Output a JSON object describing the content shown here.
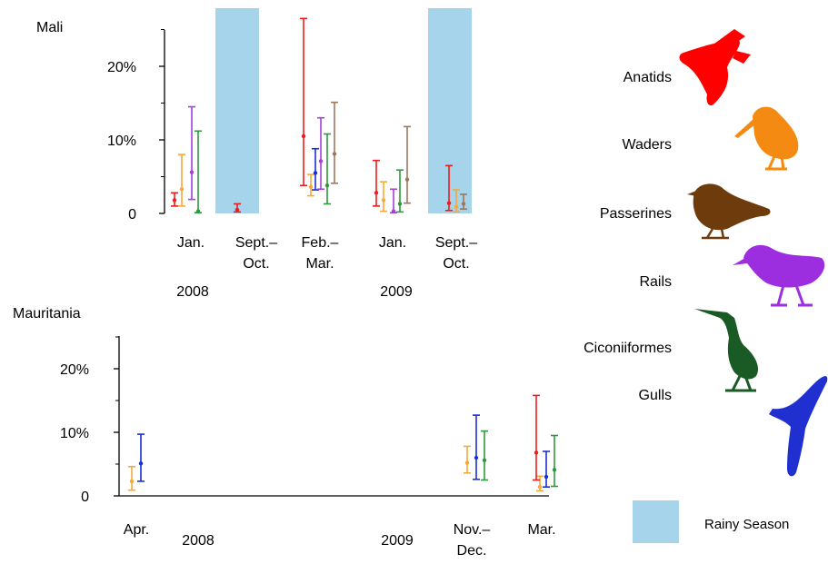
{
  "colors": {
    "anatids": "#ee1c1c",
    "waders": "#f7a83a",
    "passerines": "#a0765a",
    "rails": "#a43fd8",
    "ciconiiformes": "#2a9a3a",
    "gulls": "#1b2fd6",
    "rainy_season": "#a6d4ea",
    "axis": "#000000"
  },
  "legend": {
    "items": [
      {
        "key": "anatids",
        "label": "Anatids",
        "color": "#ee1c1c",
        "icon": "duck-silhouette-icon",
        "icon_color": "#ff0000"
      },
      {
        "key": "waders",
        "label": "Waders",
        "color": "#f7a83a",
        "icon": "curlew-silhouette-icon",
        "icon_color": "#f58a12"
      },
      {
        "key": "passerines",
        "label": "Passerines",
        "color": "#a0765a",
        "icon": "sparrow-silhouette-icon",
        "icon_color": "#6e3b0c"
      },
      {
        "key": "rails",
        "label": "Rails",
        "color": "#a43fd8",
        "icon": "rail-silhouette-icon",
        "icon_color": "#9d2ee0"
      },
      {
        "key": "ciconiiformes",
        "label": "Ciconiiformes",
        "color": "#2a9a3a",
        "icon": "heron-silhouette-icon",
        "icon_color": "#1a5a24"
      },
      {
        "key": "gulls",
        "label": "Gulls",
        "color": "#1b2fd6",
        "icon": "gull-silhouette-icon",
        "icon_color": "#1f2fd0"
      }
    ],
    "rainy_season_label": "Rainy Season"
  },
  "chart_data": [
    {
      "type": "scatter",
      "panel": "Mali",
      "title": "Mali",
      "ylim": [
        0,
        26
      ],
      "y_tick_labels": [
        "0",
        "10%",
        "20%"
      ],
      "y_tick_values": [
        0,
        10,
        20
      ],
      "periods": [
        {
          "label_lines": [
            "Jan."
          ],
          "x": 0
        },
        {
          "label_lines": [
            "Sept.–",
            "Oct."
          ],
          "x": 1
        },
        {
          "label_lines": [
            "Feb.–",
            "Mar."
          ],
          "x": 2
        },
        {
          "label_lines": [
            "Jan."
          ],
          "x": 3
        },
        {
          "label_lines": [
            "Sept.–",
            "Oct."
          ],
          "x": 4
        }
      ],
      "years": [
        {
          "label": "2008",
          "x": 0.5
        },
        {
          "label": "2009",
          "x": 3.1
        }
      ],
      "rainy_seasons": [
        1,
        4
      ],
      "series": [
        {
          "key": "anatids",
          "name": "Anatids",
          "points": [
            {
              "x": 0,
              "y": 1.8,
              "low": 1.0,
              "high": 2.8
            },
            {
              "x": 1,
              "y": 0.5,
              "low": 0.2,
              "high": 1.3
            },
            {
              "x": 2,
              "y": 10.5,
              "low": 3.8,
              "high": 26.5
            },
            {
              "x": 3,
              "y": 2.8,
              "low": 1.0,
              "high": 7.2
            },
            {
              "x": 4,
              "y": 1.4,
              "low": 0.4,
              "high": 6.5
            }
          ]
        },
        {
          "key": "waders",
          "name": "Waders",
          "points": [
            {
              "x": 0,
              "y": 3.3,
              "low": 1.0,
              "high": 8.0
            },
            {
              "x": 2,
              "y": 3.6,
              "low": 2.4,
              "high": 5.3
            },
            {
              "x": 3,
              "y": 1.8,
              "low": 0.3,
              "high": 4.3
            },
            {
              "x": 4,
              "y": 0.9,
              "low": 0.2,
              "high": 3.2
            }
          ]
        },
        {
          "key": "gulls",
          "name": "Gulls",
          "points": [
            {
              "x": 2,
              "y": 5.5,
              "low": 3.2,
              "high": 8.8
            }
          ]
        },
        {
          "key": "rails",
          "name": "Rails",
          "points": [
            {
              "x": 0,
              "y": 5.6,
              "low": 1.9,
              "high": 14.5
            },
            {
              "x": 2,
              "y": 7.1,
              "low": 3.3,
              "high": 13.0
            },
            {
              "x": 3,
              "y": 0.3,
              "low": 0.1,
              "high": 3.3
            }
          ]
        },
        {
          "key": "ciconiiformes",
          "name": "Ciconiiformes",
          "points": [
            {
              "x": 0,
              "y": 0.3,
              "low": 0.1,
              "high": 11.2
            },
            {
              "x": 2,
              "y": 3.8,
              "low": 1.3,
              "high": 10.8
            },
            {
              "x": 3,
              "y": 1.3,
              "low": 0.2,
              "high": 5.9
            }
          ]
        },
        {
          "key": "passerines",
          "name": "Passerines",
          "points": [
            {
              "x": 2,
              "y": 8.1,
              "low": 4.1,
              "high": 15.1
            },
            {
              "x": 3,
              "y": 4.6,
              "low": 1.4,
              "high": 11.8
            },
            {
              "x": 4,
              "y": 1.3,
              "low": 0.6,
              "high": 2.6
            }
          ]
        }
      ]
    },
    {
      "type": "scatter",
      "panel": "Mauritania",
      "title": "Mauritania",
      "ylim": [
        0,
        26
      ],
      "y_tick_labels": [
        "0",
        "10%",
        "20%"
      ],
      "y_tick_values": [
        0,
        10,
        20
      ],
      "periods": [
        {
          "label_lines": [
            "Apr."
          ],
          "x": 0
        },
        {
          "label_lines": [
            "Nov.–",
            "Dec."
          ],
          "x": 1
        },
        {
          "label_lines": [
            "Mar."
          ],
          "x": 2
        }
      ],
      "years": [
        {
          "label": "2008",
          "x": 0.25
        },
        {
          "label": "2009",
          "x": 0.83
        }
      ],
      "rainy_seasons": [],
      "series": [
        {
          "key": "waders",
          "name": "Waders",
          "points": [
            {
              "x": 0,
              "y": 2.3,
              "low": 0.9,
              "high": 4.6
            },
            {
              "x": 1,
              "y": 5.2,
              "low": 3.6,
              "high": 7.8
            },
            {
              "x": 2,
              "y": 1.4,
              "low": 0.8,
              "high": 3.1
            }
          ]
        },
        {
          "key": "gulls",
          "name": "Gulls",
          "points": [
            {
              "x": 0,
              "y": 5.1,
              "low": 2.3,
              "high": 9.7
            },
            {
              "x": 1,
              "y": 6.0,
              "low": 2.6,
              "high": 12.7
            },
            {
              "x": 2,
              "y": 3.0,
              "low": 1.4,
              "high": 7.0
            }
          ]
        },
        {
          "key": "ciconiiformes",
          "name": "Ciconiiformes",
          "points": [
            {
              "x": 1,
              "y": 5.6,
              "low": 2.5,
              "high": 10.2
            },
            {
              "x": 2,
              "y": 4.1,
              "low": 1.5,
              "high": 9.5
            }
          ]
        },
        {
          "key": "anatids",
          "name": "Anatids",
          "points": [
            {
              "x": 2,
              "y": 6.8,
              "low": 2.5,
              "high": 15.8
            }
          ]
        }
      ]
    }
  ]
}
